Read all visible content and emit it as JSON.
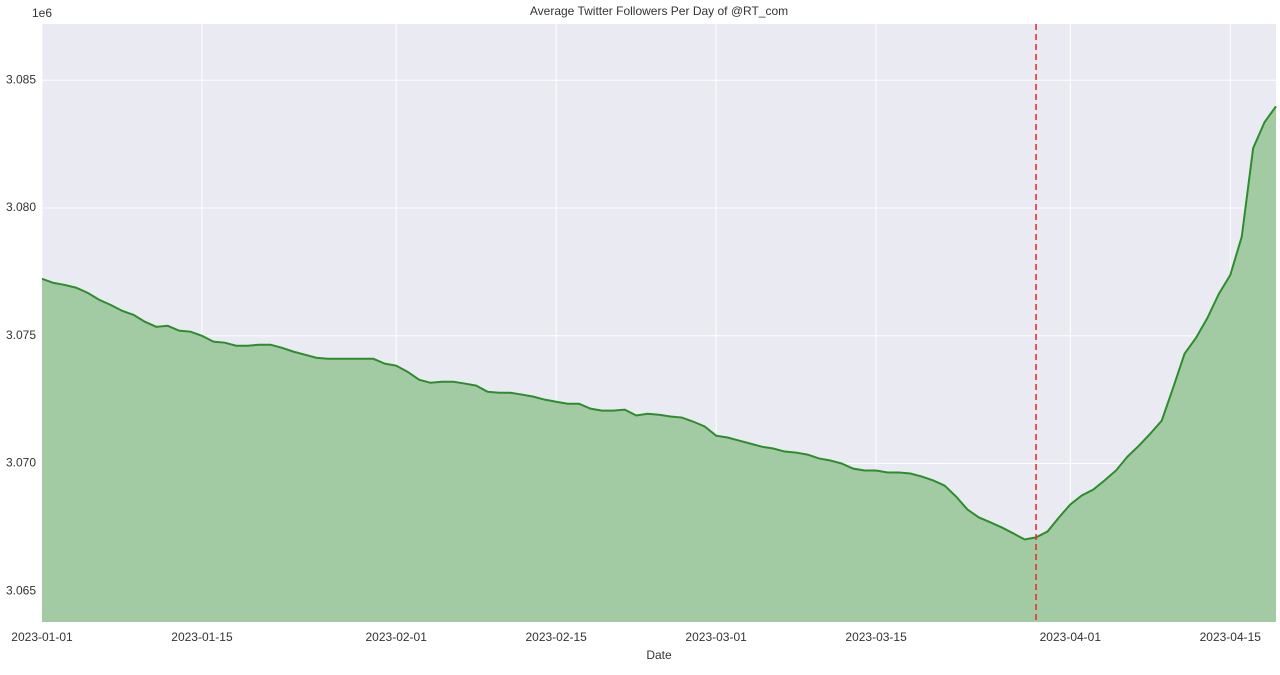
{
  "chart_data": {
    "type": "area",
    "title": "Average Twitter Followers Per Day of @RT_com",
    "x_label": "Date",
    "y_offset_label": "1e6",
    "x": [
      "2023-01-01",
      "2023-01-02",
      "2023-01-03",
      "2023-01-04",
      "2023-01-05",
      "2023-01-06",
      "2023-01-07",
      "2023-01-08",
      "2023-01-09",
      "2023-01-10",
      "2023-01-11",
      "2023-01-12",
      "2023-01-13",
      "2023-01-14",
      "2023-01-15",
      "2023-01-16",
      "2023-01-17",
      "2023-01-18",
      "2023-01-19",
      "2023-01-20",
      "2023-01-21",
      "2023-01-22",
      "2023-01-23",
      "2023-01-24",
      "2023-01-25",
      "2023-01-26",
      "2023-01-27",
      "2023-01-28",
      "2023-01-29",
      "2023-01-30",
      "2023-01-31",
      "2023-02-01",
      "2023-02-02",
      "2023-02-03",
      "2023-02-04",
      "2023-02-05",
      "2023-02-06",
      "2023-02-07",
      "2023-02-08",
      "2023-02-09",
      "2023-02-10",
      "2023-02-11",
      "2023-02-12",
      "2023-02-13",
      "2023-02-14",
      "2023-02-15",
      "2023-02-16",
      "2023-02-17",
      "2023-02-18",
      "2023-02-19",
      "2023-02-20",
      "2023-02-21",
      "2023-02-22",
      "2023-02-23",
      "2023-02-24",
      "2023-02-25",
      "2023-02-26",
      "2023-02-27",
      "2023-02-28",
      "2023-03-01",
      "2023-03-02",
      "2023-03-03",
      "2023-03-04",
      "2023-03-05",
      "2023-03-06",
      "2023-03-07",
      "2023-03-08",
      "2023-03-09",
      "2023-03-10",
      "2023-03-11",
      "2023-03-12",
      "2023-03-13",
      "2023-03-14",
      "2023-03-15",
      "2023-03-16",
      "2023-03-17",
      "2023-03-18",
      "2023-03-19",
      "2023-03-20",
      "2023-03-21",
      "2023-03-22",
      "2023-03-23",
      "2023-03-24",
      "2023-03-25",
      "2023-03-26",
      "2023-03-27",
      "2023-03-28",
      "2023-03-29",
      "2023-03-30",
      "2023-03-31",
      "2023-04-01",
      "2023-04-02",
      "2023-04-03",
      "2023-04-04",
      "2023-04-05",
      "2023-04-06",
      "2023-04-07",
      "2023-04-08",
      "2023-04-09",
      "2023-04-10",
      "2023-04-11",
      "2023-04-12",
      "2023-04-13",
      "2023-04-14",
      "2023-04-15",
      "2023-04-16",
      "2023-04-17",
      "2023-04-18",
      "2023-04-19"
    ],
    "series": [
      {
        "color": "#2e8b2e",
        "fill": "#a3cba3",
        "values": [
          3.07723,
          3.07707,
          3.07699,
          3.07688,
          3.07668,
          3.07641,
          3.07621,
          3.07598,
          3.07582,
          3.07555,
          3.07535,
          3.07539,
          3.0752,
          3.07516,
          3.075,
          3.07477,
          3.07473,
          3.07461,
          3.07461,
          3.07465,
          3.07465,
          3.07453,
          3.07438,
          3.07426,
          3.07414,
          3.0741,
          3.0741,
          3.0741,
          3.0741,
          3.0741,
          3.07391,
          3.07383,
          3.07359,
          3.07328,
          3.07316,
          3.0732,
          3.0732,
          3.07313,
          3.07305,
          3.07281,
          3.07277,
          3.07277,
          3.0727,
          3.07262,
          3.0725,
          3.07242,
          3.07234,
          3.07234,
          3.07215,
          3.07207,
          3.07207,
          3.07211,
          3.07188,
          3.07195,
          3.07191,
          3.07184,
          3.0718,
          3.07164,
          3.07145,
          3.07109,
          3.07102,
          3.0709,
          3.07078,
          3.07066,
          3.07059,
          3.07047,
          3.07043,
          3.07035,
          3.0702,
          3.07012,
          3.07,
          3.0698,
          3.06973,
          3.06973,
          3.06965,
          3.06965,
          3.06961,
          3.06949,
          3.06934,
          3.06914,
          3.06871,
          3.0682,
          3.06789,
          3.0677,
          3.0675,
          3.06727,
          3.06703,
          3.06711,
          3.06734,
          3.06789,
          3.0684,
          3.06875,
          3.06898,
          3.06934,
          3.06973,
          3.07027,
          3.0707,
          3.07117,
          3.07168,
          3.07297,
          3.0743,
          3.07492,
          3.0757,
          3.07664,
          3.07738,
          3.07887,
          3.08234,
          3.08336,
          3.08398
        ]
      }
    ],
    "xlim": [
      "2023-01-01",
      "2023-04-19"
    ],
    "xticks": [
      "2023-01-01",
      "2023-01-15",
      "2023-02-01",
      "2023-02-15",
      "2023-03-01",
      "2023-03-15",
      "2023-04-01",
      "2023-04-15"
    ],
    "ylim": [
      3.0638,
      3.0872
    ],
    "yticks": [
      3.065,
      {
        "value": 3.07,
        "label": "3.070"
      },
      3.075,
      {
        "value": 3.08,
        "label": "3.080"
      },
      3.085
    ],
    "grid": true,
    "vline": {
      "x": "2023-03-29",
      "color": "#e8312e",
      "style": "dashed"
    }
  }
}
